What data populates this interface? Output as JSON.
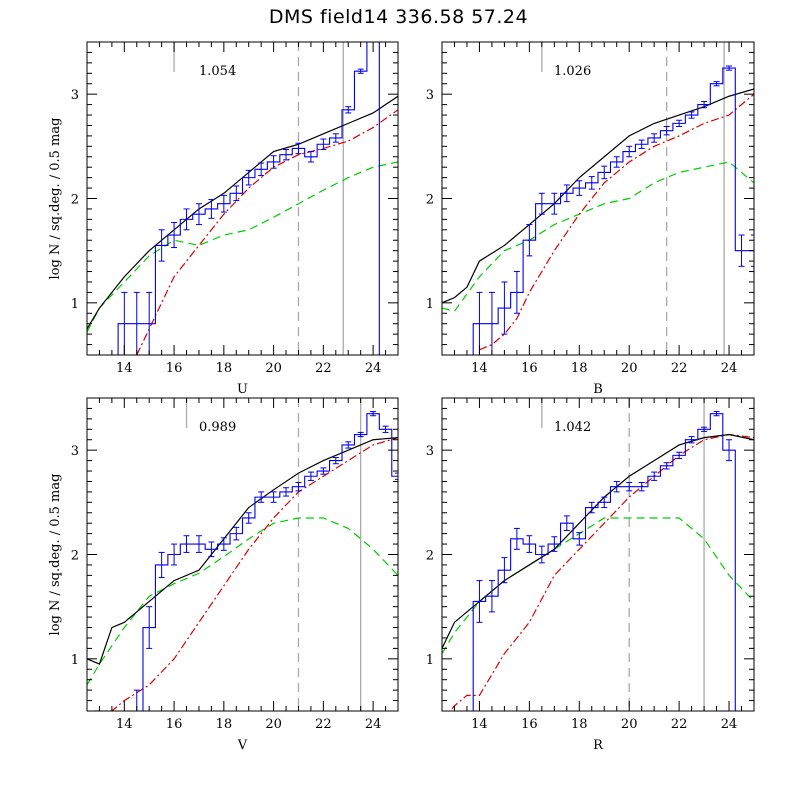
{
  "title": "DMS field14  336.58  57.24",
  "colors": {
    "data": "#0000ee",
    "total": "#000000",
    "red": "#dd0000",
    "green": "#00cc00",
    "grey": "#aaaaaa"
  },
  "chart_data": [
    {
      "type": "line",
      "band": "U",
      "xlabel": "U",
      "ylabel": "log N / sq.deg. / 0.5 mag",
      "ratio_label": "1.054",
      "xlim": [
        12.5,
        25
      ],
      "ylim": [
        0.5,
        3.5
      ],
      "xticks": [
        14,
        16,
        18,
        20,
        22,
        24
      ],
      "yticks": [
        1,
        2,
        3
      ],
      "grey_solid_x": [
        22.8
      ],
      "grey_dashed_x": [
        21.0
      ],
      "grey_tick_x": 16.0,
      "data_hist": {
        "edges": [
          13.75,
          14.25,
          14.75,
          15.25,
          15.75,
          16.25,
          16.75,
          17.25,
          17.75,
          18.25,
          18.75,
          19.25,
          19.75,
          20.25,
          20.75,
          21.25,
          21.75,
          22.25,
          22.75,
          23.25,
          23.75
        ],
        "values": [
          0.8,
          0.8,
          0.8,
          1.55,
          1.65,
          1.8,
          1.85,
          1.9,
          1.95,
          2.05,
          2.2,
          2.28,
          2.35,
          2.42,
          2.48,
          2.4,
          2.52,
          2.58,
          2.85,
          3.22,
          3.6
        ],
        "errors": [
          0.3,
          0.3,
          0.3,
          0.15,
          0.12,
          0.1,
          0.1,
          0.09,
          0.08,
          0.07,
          0.07,
          0.06,
          0.06,
          0.05,
          0.05,
          0.05,
          0.05,
          0.04,
          0.03,
          0.02,
          0.0
        ]
      },
      "model_total": {
        "x": [
          12.5,
          13,
          14,
          15,
          16,
          17,
          18,
          19,
          20,
          21,
          22,
          23,
          24,
          25
        ],
        "y": [
          0.75,
          0.95,
          1.25,
          1.5,
          1.7,
          1.9,
          2.05,
          2.25,
          2.45,
          2.52,
          2.62,
          2.72,
          2.82,
          2.98
        ]
      },
      "model_red": {
        "x": [
          14.5,
          15,
          15.5,
          16,
          17,
          18,
          19,
          20,
          21,
          22,
          23,
          24,
          25
        ],
        "y": [
          0.5,
          0.75,
          1.0,
          1.25,
          1.55,
          1.85,
          2.1,
          2.3,
          2.42,
          2.48,
          2.55,
          2.68,
          2.85
        ]
      },
      "model_green": {
        "x": [
          12.5,
          13,
          14,
          15,
          16,
          17,
          18,
          19,
          20,
          21,
          22,
          23,
          24,
          25
        ],
        "y": [
          0.72,
          0.95,
          1.2,
          1.45,
          1.6,
          1.55,
          1.65,
          1.7,
          1.82,
          1.95,
          2.08,
          2.2,
          2.3,
          2.35
        ]
      }
    },
    {
      "type": "line",
      "band": "B",
      "xlabel": "B",
      "ylabel": "",
      "ratio_label": "1.026",
      "xlim": [
        12.5,
        25
      ],
      "ylim": [
        0.5,
        3.5
      ],
      "xticks": [
        14,
        16,
        18,
        20,
        22,
        24
      ],
      "yticks": [
        1,
        2,
        3
      ],
      "grey_solid_x": [
        23.8
      ],
      "grey_dashed_x": [
        21.5
      ],
      "grey_tick_x": 16.5,
      "data_hist": {
        "edges": [
          13.75,
          14.25,
          14.75,
          15.25,
          15.75,
          16.25,
          16.75,
          17.25,
          17.75,
          18.25,
          18.75,
          19.25,
          19.75,
          20.25,
          20.75,
          21.25,
          21.75,
          22.25,
          22.75,
          23.25,
          23.75,
          24.25,
          24.75
        ],
        "values": [
          0.8,
          0.8,
          0.95,
          1.1,
          1.6,
          1.95,
          1.95,
          2.05,
          2.1,
          2.15,
          2.25,
          2.35,
          2.45,
          2.52,
          2.58,
          2.65,
          2.72,
          2.8,
          2.9,
          3.1,
          3.25,
          1.5,
          1.5
        ],
        "errors": [
          0.3,
          0.3,
          0.25,
          0.2,
          0.15,
          0.1,
          0.1,
          0.08,
          0.07,
          0.06,
          0.06,
          0.05,
          0.05,
          0.04,
          0.04,
          0.04,
          0.03,
          0.03,
          0.03,
          0.02,
          0.02,
          0.15,
          0.15
        ]
      },
      "model_total": {
        "x": [
          12.5,
          13,
          13.5,
          14,
          15,
          16,
          17,
          18,
          19,
          20,
          21,
          22,
          23,
          24,
          25
        ],
        "y": [
          1.0,
          1.05,
          1.15,
          1.4,
          1.55,
          1.75,
          1.95,
          2.2,
          2.4,
          2.6,
          2.72,
          2.8,
          2.88,
          2.98,
          3.05
        ]
      },
      "model_red": {
        "x": [
          14,
          14.5,
          15,
          15.5,
          16,
          17,
          18,
          19,
          20,
          21,
          22,
          23,
          24,
          25
        ],
        "y": [
          0.55,
          0.6,
          0.7,
          0.85,
          1.1,
          1.5,
          1.85,
          2.15,
          2.35,
          2.5,
          2.6,
          2.72,
          2.8,
          3.0
        ]
      },
      "model_green": {
        "x": [
          12.5,
          13,
          14,
          15,
          16,
          17,
          18,
          19,
          20,
          21,
          22,
          23,
          24,
          25
        ],
        "y": [
          0.95,
          0.92,
          1.25,
          1.5,
          1.6,
          1.75,
          1.85,
          1.95,
          2.0,
          2.15,
          2.25,
          2.3,
          2.35,
          2.15
        ]
      }
    },
    {
      "type": "line",
      "band": "V",
      "xlabel": "V",
      "ylabel": "log N / sq.deg. / 0.5 mag",
      "ratio_label": "0.989",
      "xlim": [
        12.5,
        25
      ],
      "ylim": [
        0.5,
        3.5
      ],
      "xticks": [
        14,
        16,
        18,
        20,
        22,
        24
      ],
      "yticks": [
        1,
        2,
        3
      ],
      "grey_solid_x": [
        23.5
      ],
      "grey_dashed_x": [
        21.0
      ],
      "grey_tick_x": 16.5,
      "data_hist": {
        "edges": [
          14.25,
          14.75,
          15.25,
          15.75,
          16.25,
          16.75,
          17.25,
          17.75,
          18.25,
          18.75,
          19.25,
          19.75,
          20.25,
          20.75,
          21.25,
          21.75,
          22.25,
          22.75,
          23.25,
          23.75,
          24.25,
          24.75
        ],
        "values": [
          0.5,
          1.3,
          1.9,
          2.0,
          2.1,
          2.1,
          2.05,
          2.1,
          2.2,
          2.35,
          2.55,
          2.55,
          2.6,
          2.65,
          2.75,
          2.8,
          2.9,
          3.05,
          3.15,
          3.35,
          3.2,
          2.75
        ],
        "errors": [
          0.2,
          0.2,
          0.12,
          0.1,
          0.08,
          0.08,
          0.07,
          0.06,
          0.06,
          0.05,
          0.05,
          0.05,
          0.04,
          0.04,
          0.04,
          0.03,
          0.03,
          0.03,
          0.02,
          0.02,
          0.03,
          0.03
        ]
      },
      "model_total": {
        "x": [
          12.5,
          13,
          13.5,
          14,
          15,
          16,
          17,
          18,
          19,
          20,
          21,
          22,
          23,
          24,
          25
        ],
        "y": [
          1.0,
          0.95,
          1.3,
          1.35,
          1.55,
          1.75,
          1.85,
          2.15,
          2.45,
          2.62,
          2.78,
          2.9,
          3.0,
          3.1,
          3.12
        ]
      },
      "model_red": {
        "x": [
          12.8,
          13.5,
          14,
          15,
          16,
          17,
          18,
          19,
          20,
          21,
          22,
          23,
          24,
          25
        ],
        "y": [
          0.5,
          0.5,
          0.6,
          0.75,
          1.0,
          1.35,
          1.7,
          2.05,
          2.35,
          2.6,
          2.75,
          2.9,
          3.05,
          3.12
        ]
      },
      "model_green": {
        "x": [
          12.5,
          13,
          14,
          15,
          16,
          17,
          18,
          19,
          20,
          21,
          22,
          23,
          24,
          25
        ],
        "y": [
          0.75,
          0.95,
          1.3,
          1.6,
          1.72,
          1.82,
          1.98,
          2.15,
          2.3,
          2.35,
          2.35,
          2.25,
          2.05,
          1.8
        ]
      }
    },
    {
      "type": "line",
      "band": "R",
      "xlabel": "R",
      "ylabel": "",
      "ratio_label": "1.042",
      "xlim": [
        12.5,
        25
      ],
      "ylim": [
        0.5,
        3.5
      ],
      "xticks": [
        14,
        16,
        18,
        20,
        22,
        24
      ],
      "yticks": [
        1,
        2,
        3
      ],
      "grey_solid_x": [
        23.0
      ],
      "grey_dashed_x": [
        20.0
      ],
      "grey_tick_x": 16.5,
      "data_hist": {
        "edges": [
          13.75,
          14.25,
          14.75,
          15.25,
          15.75,
          16.25,
          16.75,
          17.25,
          17.75,
          18.25,
          18.75,
          19.25,
          19.75,
          20.25,
          20.75,
          21.25,
          21.75,
          22.25,
          22.75,
          23.25,
          23.75
        ],
        "values": [
          1.55,
          1.6,
          1.85,
          2.15,
          2.1,
          2.0,
          2.1,
          2.3,
          2.15,
          2.45,
          2.5,
          2.65,
          2.65,
          2.65,
          2.75,
          2.85,
          2.95,
          3.1,
          3.2,
          3.35,
          3.0
        ],
        "errors": [
          0.2,
          0.15,
          0.12,
          0.1,
          0.08,
          0.08,
          0.07,
          0.07,
          0.06,
          0.05,
          0.05,
          0.05,
          0.04,
          0.04,
          0.04,
          0.03,
          0.03,
          0.03,
          0.02,
          0.02,
          0.1
        ]
      },
      "model_total": {
        "x": [
          12.5,
          13,
          14,
          15,
          16,
          17,
          18,
          19,
          20,
          21,
          22,
          23,
          24,
          25
        ],
        "y": [
          1.1,
          1.35,
          1.55,
          1.75,
          1.9,
          2.05,
          2.3,
          2.55,
          2.75,
          2.9,
          3.05,
          3.12,
          3.15,
          3.1
        ]
      },
      "model_red": {
        "x": [
          12.5,
          13,
          13.5,
          14,
          15,
          16,
          17,
          18,
          19,
          20,
          21,
          22,
          23,
          24,
          25
        ],
        "y": [
          0.4,
          0.55,
          0.65,
          0.65,
          1.05,
          1.35,
          1.8,
          2.05,
          2.3,
          2.55,
          2.75,
          2.95,
          3.1,
          3.15,
          3.12
        ]
      },
      "model_green": {
        "x": [
          12.5,
          13,
          14,
          15,
          16,
          17,
          18,
          19,
          20,
          21,
          22,
          23,
          24,
          25
        ],
        "y": [
          1.05,
          1.25,
          1.55,
          1.75,
          1.9,
          2.05,
          2.2,
          2.35,
          2.35,
          2.35,
          2.35,
          2.15,
          1.8,
          1.55
        ]
      }
    }
  ]
}
